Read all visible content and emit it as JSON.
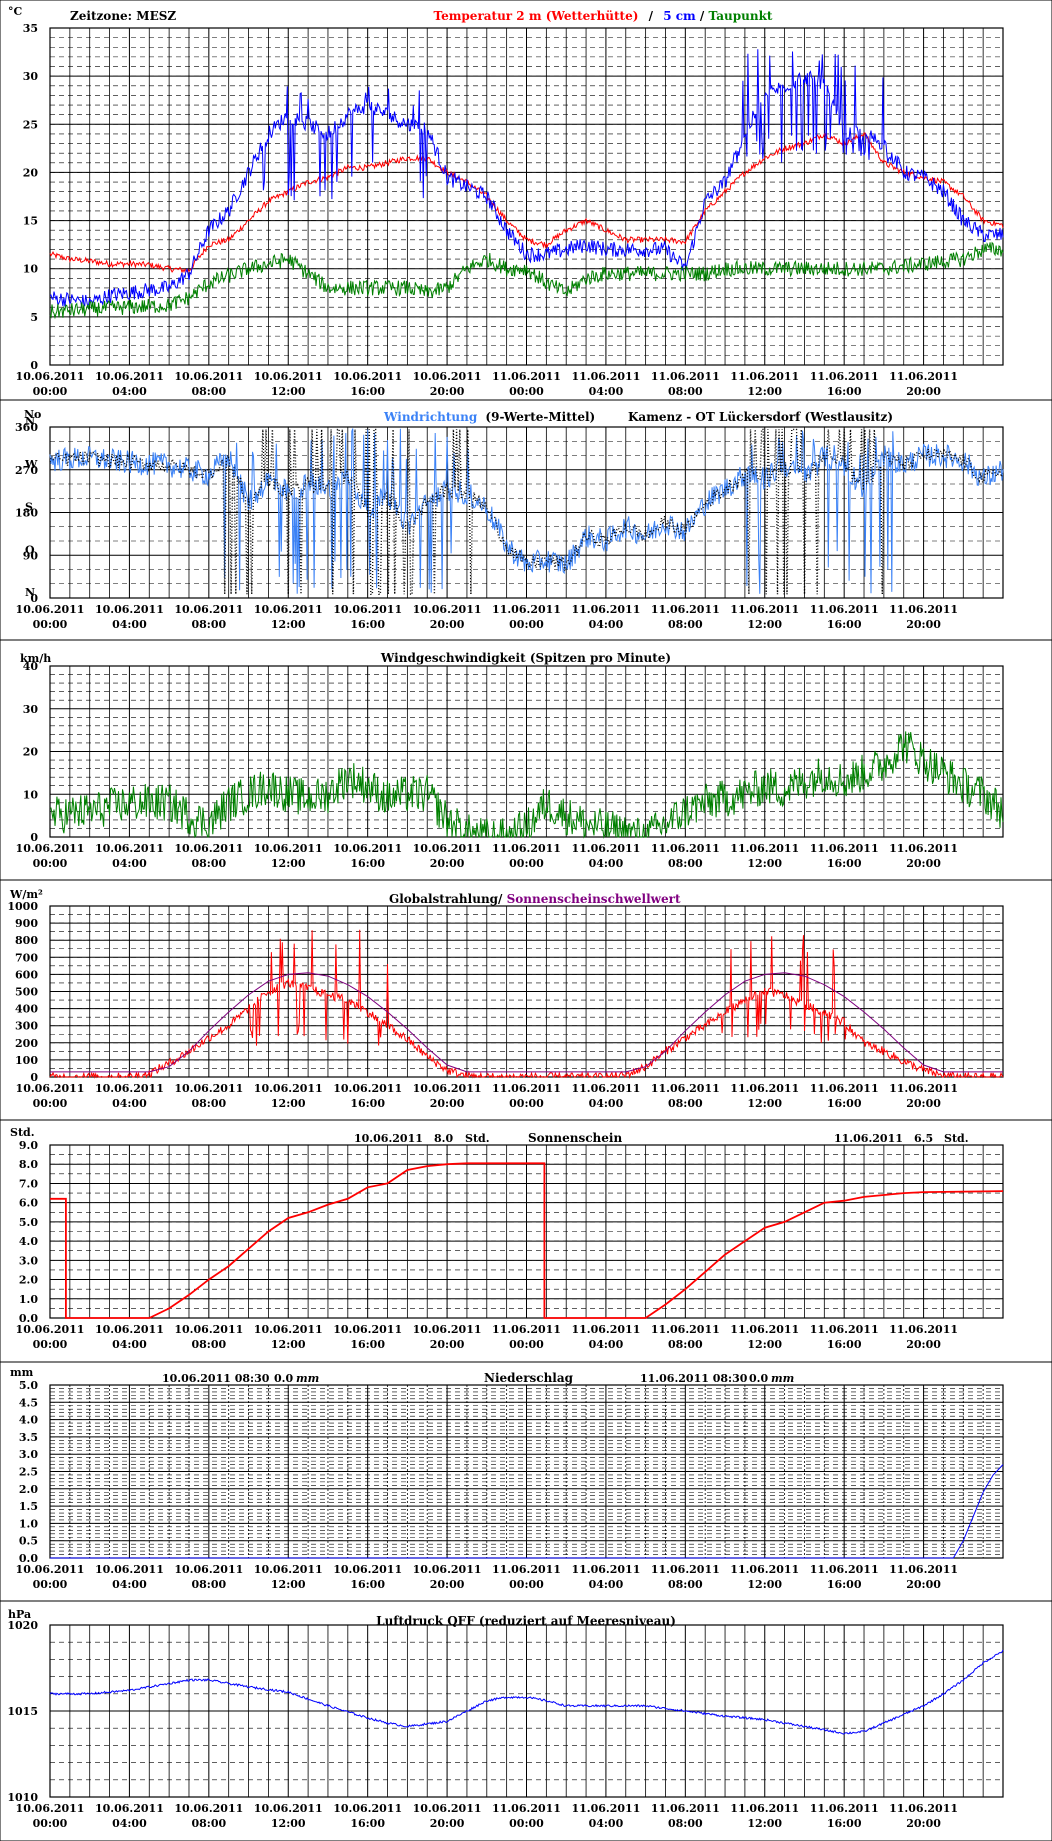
{
  "colors": {
    "red": "#ff0000",
    "blue": "#0000ff",
    "green": "#008000",
    "lightblue": "#3b82f6",
    "purple": "#800080",
    "black": "#000000"
  },
  "time_axis": {
    "x": [
      0,
      4,
      8,
      12,
      16,
      20,
      24,
      28,
      32,
      36,
      40,
      44
    ],
    "date_labels": [
      "10.06.2011",
      "10.06.2011",
      "10.06.2011",
      "10.06.2011",
      "10.06.2011",
      "10.06.2011",
      "11.06.2011",
      "11.06.2011",
      "11.06.2011",
      "11.06.2011",
      "11.06.2011",
      "11.06.2011"
    ],
    "time_labels": [
      "00:00",
      "04:00",
      "08:00",
      "12:00",
      "16:00",
      "20:00",
      "00:00",
      "04:00",
      "08:00",
      "12:00",
      "16:00",
      "20:00"
    ],
    "xmax": 48
  },
  "panels": [
    {
      "id": "temperature",
      "unit": "°C",
      "texts": {
        "zone": "Zeitzone: MESZ",
        "t1": "Temperatur 2 m (Wetterhütte)",
        "sep": "/",
        "t2": "5 cm",
        "sep2": "/",
        "t3": "Taupunkt"
      },
      "ymin": 0,
      "ymax": 35,
      "ytick_step": 5,
      "yminor_step": 1
    },
    {
      "id": "wind_direction",
      "unit": "N",
      "texts": {
        "t1": "Windrichtung",
        "t2": "(9-Werte-Mittel)",
        "station": "Kamenz - OT Lückersdorf (Westlausitz)"
      },
      "ymin": 0,
      "ymax": 360,
      "ytick_values": [
        0,
        90,
        180,
        270,
        360
      ],
      "compass": [
        {
          "label": "N",
          "value": 360
        },
        {
          "label": "W",
          "value": 270
        },
        {
          "label": "S",
          "value": 180
        },
        {
          "label": "O",
          "value": 90
        },
        {
          "label": "N",
          "value": 0
        }
      ]
    },
    {
      "id": "wind_speed",
      "unit": "km/h",
      "texts": {
        "t1": "Windgeschwindigkeit (Spitzen pro Minute)"
      },
      "ymin": 0,
      "ymax": 40,
      "ytick_step": 10,
      "yminor_step": 2
    },
    {
      "id": "radiation",
      "unit": "W/m²",
      "texts": {
        "t1": "Globalstrahlung/",
        "t2": "Sonnenscheinschwellwert"
      },
      "ymin": 0,
      "ymax": 1000,
      "ytick_step": 100
    },
    {
      "id": "sunshine",
      "unit": "Std.",
      "texts": {
        "title": "Sonnenschein",
        "d1": "10.06.2011",
        "v1": "8.0",
        "u1": "Std.",
        "d2": "11.06.2011",
        "v2": "6.5",
        "u2": "Std."
      },
      "ymin": 0,
      "ymax": 9,
      "ytick_step": 1,
      "ydecimals": 1
    },
    {
      "id": "precipitation",
      "unit": "mm",
      "texts": {
        "title": "Niederschlag",
        "d1": "10.06.2011 08:30",
        "v1": "0.0",
        "u1": "mm",
        "d2": "11.06.2011 08:30",
        "v2": "0.0",
        "u2": "mm"
      },
      "ymin": 0,
      "ymax": 5,
      "ytick_step": 0.5,
      "ydecimals": 1
    },
    {
      "id": "pressure",
      "unit": "hPa",
      "texts": {
        "title": "Luftdruck QFF (reduziert auf Meeresniveau)"
      },
      "ymin": 1010,
      "ymax": 1020,
      "ytick_step": 5
    }
  ],
  "chart_data": [
    {
      "type": "line",
      "title": "Temperatur 2 m (Wetterhütte) / 5 cm / Taupunkt",
      "ylabel": "°C",
      "ylim": [
        0,
        35
      ],
      "x_unit": "hours since 10.06.2011 00:00",
      "series": [
        {
          "name": "Temperatur 2 m (Wetterhütte)",
          "color": "#ff0000",
          "noise": 0.3,
          "x": [
            0,
            1,
            2,
            3,
            4,
            5,
            6,
            7,
            8,
            9,
            10,
            11,
            12,
            13,
            14,
            15,
            16,
            17,
            18,
            19,
            20,
            21,
            22,
            23,
            24,
            25,
            26,
            27,
            28,
            29,
            30,
            31,
            32,
            33,
            34,
            35,
            36,
            37,
            38,
            39,
            40,
            41,
            42,
            43,
            44,
            45,
            46,
            47,
            48
          ],
          "y": [
            11.5,
            11,
            10.8,
            10.5,
            10.5,
            10.4,
            10,
            9.8,
            12.5,
            13,
            15,
            17,
            18,
            19,
            19.5,
            20.5,
            20.5,
            21,
            21.5,
            21.5,
            20,
            19,
            17.5,
            15,
            13,
            12.5,
            14,
            15,
            14,
            13,
            13,
            13,
            12.8,
            16,
            18,
            20,
            21.5,
            22.5,
            23,
            24,
            23,
            24,
            21,
            20,
            19.5,
            19,
            17.5,
            15,
            14.5
          ]
        },
        {
          "name": "5 cm",
          "color": "#0000ff",
          "noise": 0.8,
          "x": [
            0,
            1,
            2,
            3,
            4,
            5,
            6,
            7,
            8,
            9,
            10,
            11,
            12,
            13,
            14,
            15,
            16,
            17,
            18,
            19,
            20,
            21,
            22,
            23,
            24,
            25,
            26,
            27,
            28,
            29,
            30,
            31,
            32,
            33,
            34,
            35,
            36,
            37,
            38,
            39,
            40,
            41,
            42,
            43,
            44,
            45,
            46,
            47,
            48
          ],
          "y": [
            7,
            6.8,
            6.5,
            7.2,
            7.5,
            7.8,
            8,
            9.5,
            14,
            16,
            20,
            24,
            26,
            25,
            24,
            26,
            27,
            26,
            25,
            24.5,
            19.5,
            18.5,
            17.5,
            14,
            11.5,
            11.5,
            12,
            12.5,
            12,
            12,
            12,
            12,
            10,
            17,
            19,
            24,
            28,
            29,
            30,
            29,
            24,
            24,
            23,
            20,
            19.5,
            18,
            15,
            13.5,
            13.5
          ],
          "spikes": [
            {
              "from": 10.5,
              "to": 19,
              "high": 29,
              "low": 17
            },
            {
              "from": 34.5,
              "to": 42.5,
              "high": 33,
              "low": 21
            }
          ]
        },
        {
          "name": "Taupunkt",
          "color": "#008000",
          "noise": 0.8,
          "x": [
            0,
            2,
            4,
            6,
            7,
            8,
            10,
            12,
            14,
            16,
            18,
            19,
            20,
            21,
            22,
            23,
            24,
            25,
            26,
            27,
            28,
            29,
            30,
            31,
            32,
            33,
            34,
            36,
            38,
            40,
            42,
            44,
            46,
            47,
            48
          ],
          "y": [
            5.5,
            5.8,
            6,
            6.2,
            7,
            8.5,
            10,
            11,
            8,
            8,
            8,
            7.5,
            8,
            10,
            11,
            10,
            10,
            8.5,
            7.5,
            9,
            9.5,
            9.5,
            9.5,
            9.5,
            9.5,
            9.5,
            10,
            10,
            10,
            10,
            10,
            10.5,
            11,
            12,
            12
          ]
        }
      ]
    },
    {
      "type": "line",
      "title": "Windrichtung (9-Werte-Mittel)",
      "ylim": [
        0,
        360
      ],
      "x_unit": "hours since 10.06.2011 00:00",
      "series": [
        {
          "name": "Windrichtung",
          "color": "#3b82f6",
          "noise": 25,
          "x": [
            0,
            2,
            4,
            6,
            7,
            8,
            9,
            10,
            11,
            12,
            13,
            14,
            15,
            16,
            17,
            18,
            19,
            20,
            21,
            22,
            23,
            24,
            25,
            26,
            27,
            28,
            29,
            30,
            31,
            32,
            33,
            34,
            35,
            36,
            37,
            38,
            39,
            40,
            41,
            42,
            43,
            44,
            45,
            46,
            47,
            48
          ],
          "y": [
            290,
            295,
            285,
            280,
            270,
            260,
            300,
            200,
            250,
            220,
            240,
            230,
            260,
            180,
            220,
            150,
            200,
            230,
            220,
            190,
            110,
            70,
            80,
            70,
            130,
            120,
            150,
            130,
            160,
            140,
            200,
            230,
            260,
            250,
            280,
            250,
            300,
            280,
            230,
            300,
            280,
            300,
            300,
            290,
            250,
            270
          ],
          "spikes": [
            {
              "from": 8.7,
              "to": 21.2,
              "high": 360,
              "low": 5
            },
            {
              "from": 35,
              "to": 42.5,
              "high": 360,
              "low": 5
            }
          ]
        }
      ]
    },
    {
      "type": "line",
      "title": "Windgeschwindigkeit (Spitzen pro Minute)",
      "ylabel": "km/h",
      "ylim": [
        0,
        40
      ],
      "x_unit": "hours since 10.06.2011 00:00",
      "series": [
        {
          "name": "Windgeschwindigkeit",
          "color": "#008000",
          "noise": 4.5,
          "x": [
            0,
            2,
            4,
            6,
            7,
            8,
            9,
            10,
            11,
            12,
            13,
            14,
            15,
            16,
            17,
            18,
            19,
            20,
            21,
            22,
            23,
            24,
            25,
            26,
            27,
            28,
            29,
            30,
            31,
            32,
            33,
            34,
            35,
            36,
            37,
            38,
            39,
            40,
            41,
            42,
            43,
            44,
            45,
            46,
            47,
            48
          ],
          "y": [
            5,
            6,
            8,
            8,
            5,
            3,
            8,
            10,
            12,
            10,
            9,
            10,
            14,
            12,
            9,
            10,
            10,
            4,
            1,
            0,
            0,
            2,
            8,
            5,
            3,
            2,
            1,
            0,
            3,
            6,
            8,
            9,
            10,
            12,
            11,
            13,
            15,
            13,
            15,
            17,
            22,
            18,
            15,
            12,
            10,
            6
          ]
        }
      ]
    },
    {
      "type": "line",
      "title": "Globalstrahlung/ Sonnenscheinschwellwert",
      "ylabel": "W/m²",
      "ylim": [
        0,
        1000
      ],
      "x_unit": "hours since 10.06.2011 00:00",
      "series": [
        {
          "name": "Globalstrahlung",
          "color": "#ff0000",
          "noise": 25,
          "x": [
            0,
            4,
            5,
            6,
            7,
            8,
            9,
            10,
            11,
            12,
            13,
            14,
            15,
            16,
            17,
            18,
            19,
            20,
            21,
            22,
            24,
            28,
            29,
            30,
            31,
            32,
            33,
            34,
            35,
            36,
            37,
            38,
            39,
            40,
            41,
            42,
            43,
            44,
            45,
            46,
            48
          ],
          "y": [
            0,
            0,
            20,
            80,
            150,
            230,
            300,
            400,
            500,
            550,
            520,
            480,
            450,
            380,
            300,
            220,
            120,
            40,
            5,
            0,
            0,
            0,
            10,
            60,
            150,
            230,
            300,
            380,
            450,
            500,
            480,
            420,
            380,
            320,
            200,
            150,
            90,
            40,
            5,
            0,
            0
          ],
          "spikes": [
            {
              "from": 10,
              "to": 17.5,
              "high": 880,
              "low": 180
            },
            {
              "from": 33.8,
              "to": 40.3,
              "high": 860,
              "low": 200
            }
          ]
        },
        {
          "name": "Sonnenscheinschwellwert",
          "color": "#800080",
          "x": [
            0,
            5,
            6,
            7,
            8,
            9,
            10,
            11,
            12,
            13,
            14,
            15,
            16,
            17,
            18,
            19,
            20,
            21,
            24,
            29,
            30,
            31,
            32,
            33,
            34,
            35,
            36,
            37,
            38,
            39,
            40,
            41,
            42,
            43,
            44,
            45,
            48
          ],
          "y": [
            30,
            30,
            60,
            150,
            270,
            380,
            480,
            560,
            600,
            610,
            590,
            540,
            470,
            380,
            280,
            170,
            70,
            30,
            30,
            30,
            60,
            150,
            270,
            380,
            480,
            560,
            600,
            610,
            590,
            540,
            470,
            380,
            280,
            170,
            70,
            30,
            30
          ]
        }
      ]
    },
    {
      "type": "line",
      "title": "Sonnenschein",
      "ylabel": "Std.",
      "ylim": [
        0,
        9
      ],
      "x_unit": "hours since 10.06.2011 00:00",
      "series": [
        {
          "name": "Sonnenschein",
          "color": "#ff0000",
          "x": [
            0,
            0.8,
            0.8,
            5,
            6,
            7,
            8,
            9,
            10,
            11,
            12,
            13,
            14,
            15,
            16,
            17,
            18,
            19,
            20,
            21,
            22,
            24.9,
            24.9,
            30,
            31,
            32,
            33,
            34,
            35,
            36,
            37,
            38,
            39,
            40,
            41,
            42,
            43,
            44,
            48
          ],
          "y": [
            6.2,
            6.2,
            0,
            0,
            0.5,
            1.2,
            2,
            2.7,
            3.6,
            4.5,
            5.2,
            5.5,
            5.9,
            6.2,
            6.8,
            7,
            7.7,
            7.9,
            8,
            8.05,
            8.05,
            8.05,
            0,
            0,
            0.7,
            1.5,
            2.4,
            3.3,
            4,
            4.7,
            5,
            5.5,
            6,
            6.1,
            6.3,
            6.4,
            6.5,
            6.55,
            6.6
          ]
        }
      ]
    },
    {
      "type": "line",
      "title": "Niederschlag",
      "ylabel": "mm",
      "ylim": [
        0,
        5
      ],
      "x_unit": "hours since 10.06.2011 00:00",
      "series": [
        {
          "name": "Niederschlag",
          "color": "#0000ff",
          "x": [
            0,
            45.5,
            46,
            46.5,
            47,
            47.5,
            48
          ],
          "y": [
            0,
            0,
            0.5,
            1.2,
            1.9,
            2.4,
            2.7
          ]
        }
      ]
    },
    {
      "type": "line",
      "title": "Luftdruck QFF (reduziert auf Meeresniveau)",
      "ylabel": "hPa",
      "ylim": [
        1010,
        1020
      ],
      "x_unit": "hours since 10.06.2011 00:00",
      "series": [
        {
          "name": "Luftdruck QFF",
          "color": "#0000ff",
          "noise": 0.06,
          "x": [
            0,
            2,
            4,
            6,
            7,
            8,
            9,
            10,
            12,
            14,
            16,
            17,
            18,
            20,
            21,
            22,
            23,
            24,
            25,
            26,
            28,
            30,
            32,
            34,
            36,
            38,
            40,
            41,
            42,
            43,
            44,
            45,
            46,
            47,
            48
          ],
          "y": [
            1016,
            1016,
            1016.2,
            1016.6,
            1016.8,
            1016.8,
            1016.6,
            1016.4,
            1016.1,
            1015.3,
            1014.6,
            1014.3,
            1014.1,
            1014.4,
            1015,
            1015.6,
            1015.8,
            1015.8,
            1015.6,
            1015.3,
            1015.3,
            1015.3,
            1015,
            1014.7,
            1014.5,
            1014.1,
            1013.7,
            1013.8,
            1014.3,
            1014.8,
            1015.3,
            1016,
            1016.8,
            1017.8,
            1018.5
          ]
        }
      ]
    }
  ]
}
